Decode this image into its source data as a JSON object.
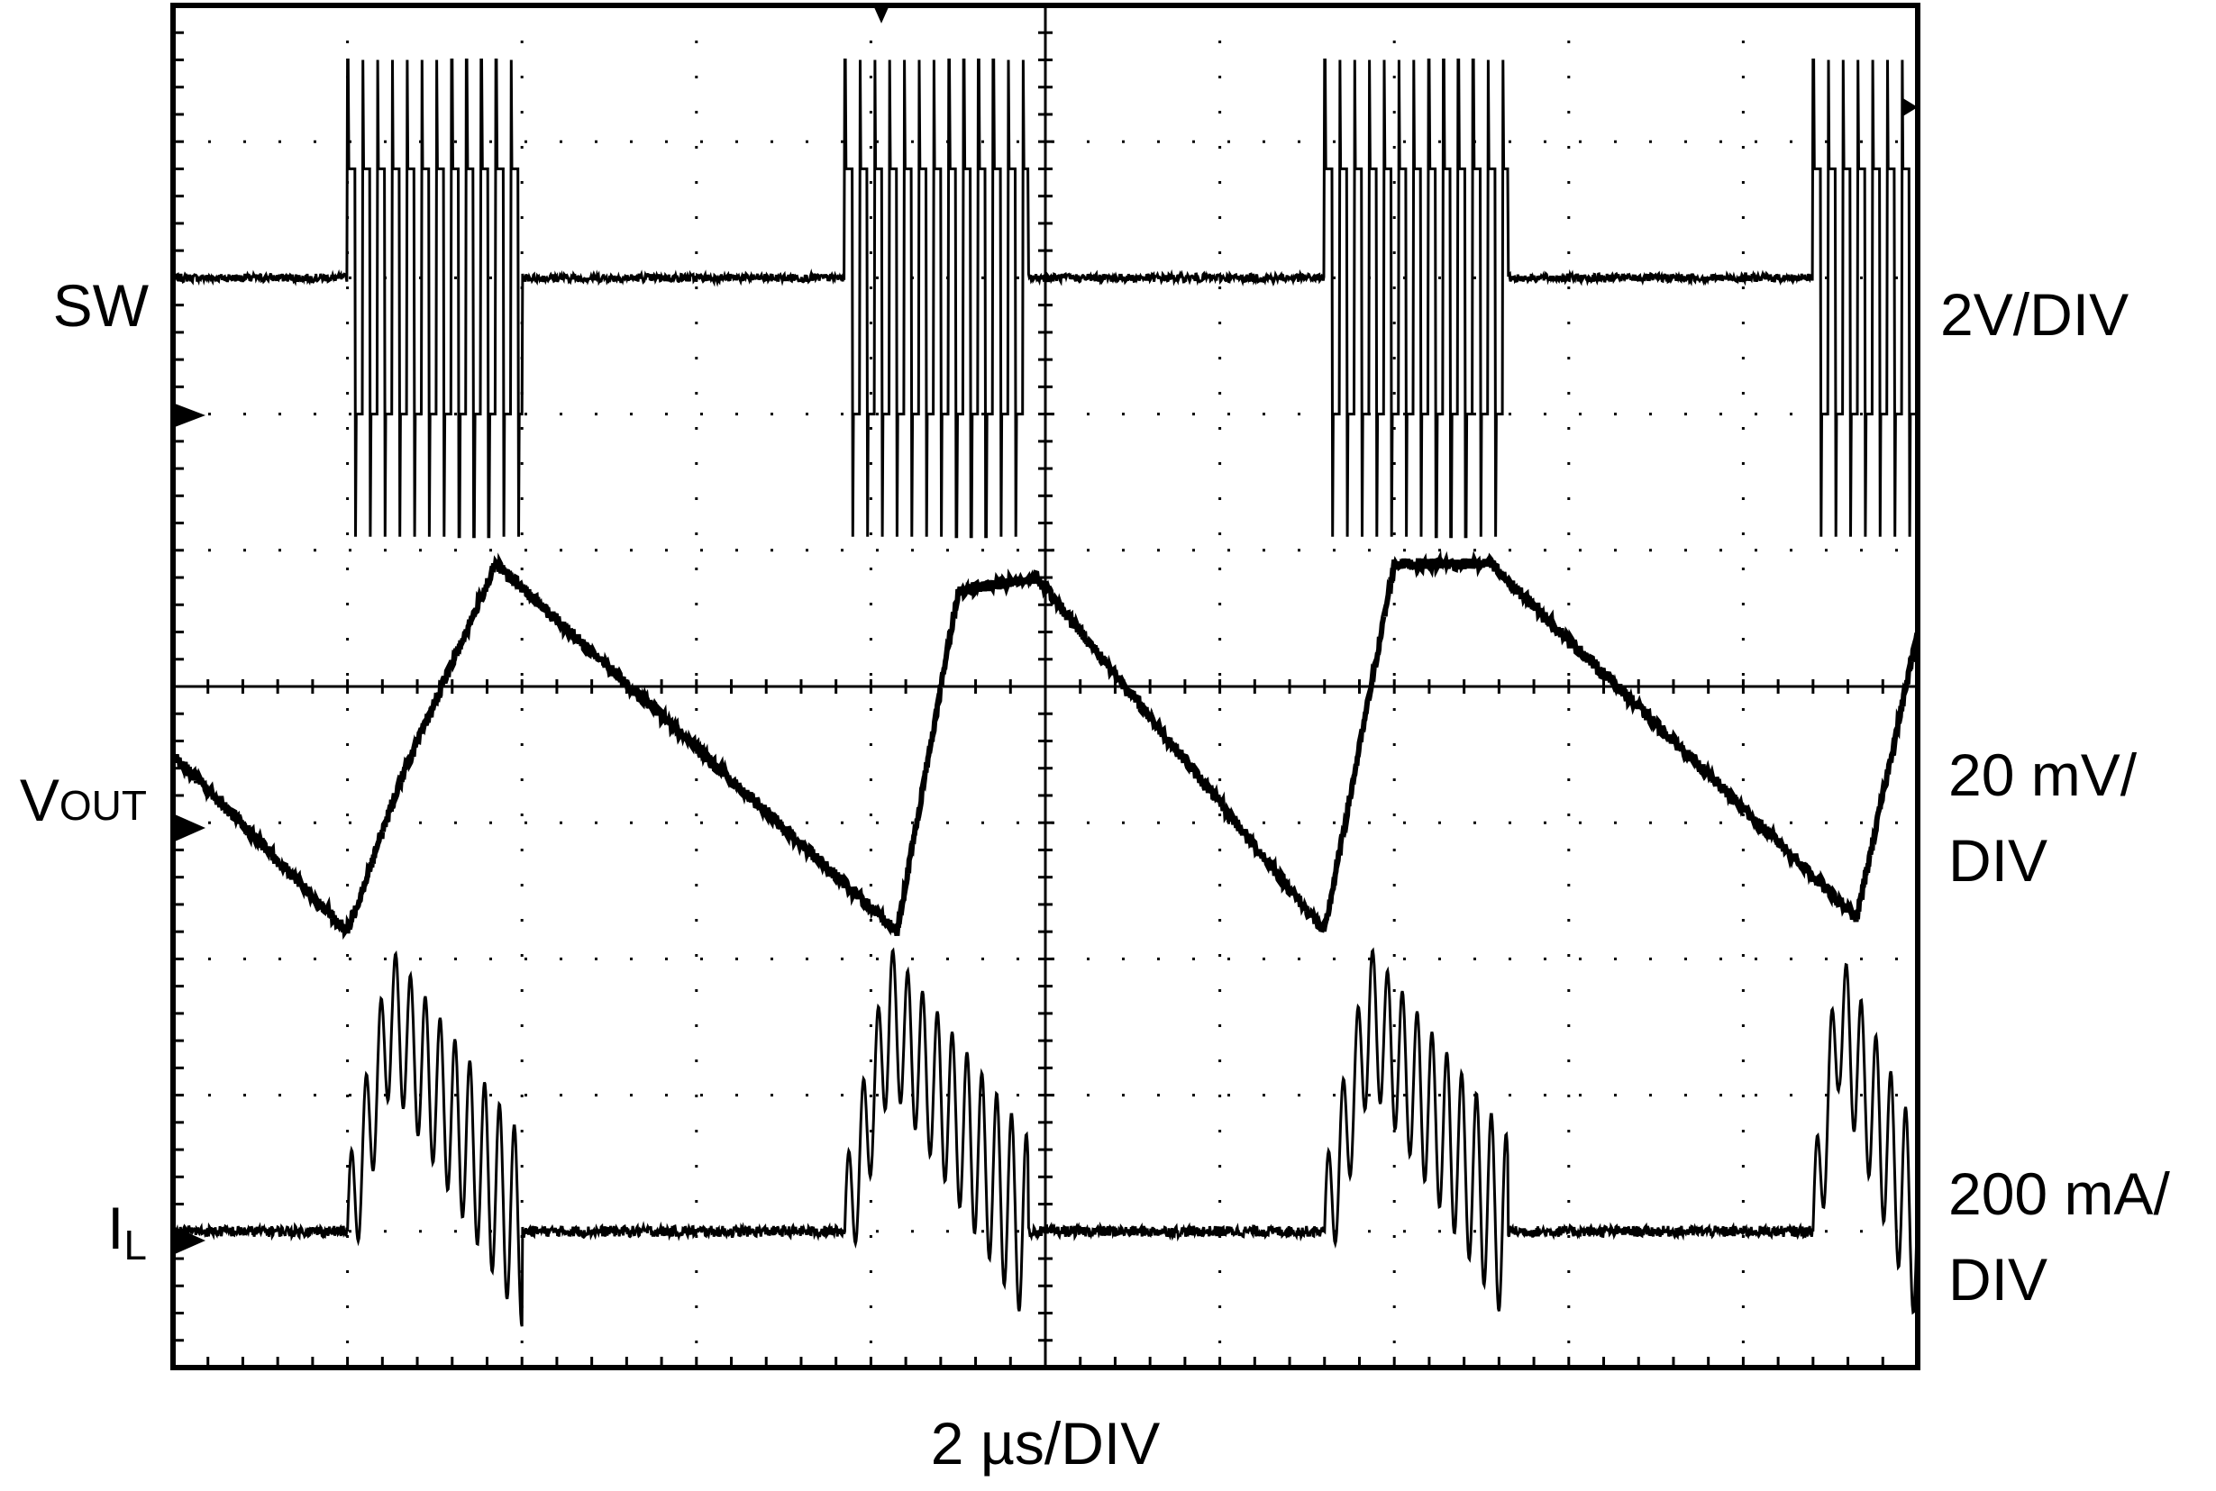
{
  "chart_data": {
    "type": "line",
    "title": "",
    "time_scale": "2 µs/DIV",
    "grid": "dotted, 10 x 10 divisions",
    "x": {
      "unit": "µs",
      "range": [
        0,
        20
      ],
      "divisions": 10,
      "per_div": 2
    },
    "y": {
      "unit": "div",
      "range": [
        -5,
        5
      ],
      "divisions": 10
    },
    "channels": [
      {
        "name": "SW",
        "label": "SW",
        "scale": "2V/DIV",
        "baseline_div": 3.0,
        "burst_high_div": 3.8,
        "burst_low_div": 2.0,
        "bursts_us": [
          [
            2.0,
            4.0
          ],
          [
            7.7,
            9.8
          ],
          [
            13.2,
            15.3
          ],
          [
            18.8,
            20.0
          ]
        ]
      },
      {
        "name": "VOUT",
        "label_main": "V",
        "label_sub": "OUT",
        "scale_line1": "20 mV/",
        "scale_line2": "DIV",
        "ac_coupled": true,
        "x": [
          0.0,
          2.0,
          2.6,
          3.7,
          8.3,
          9.0,
          9.9,
          13.2,
          14.0,
          15.1,
          19.3,
          20.0
        ],
        "y": [
          -0.5,
          -1.8,
          -0.7,
          0.9,
          -1.8,
          0.7,
          0.8,
          -1.8,
          0.9,
          0.9,
          -1.7,
          0.4
        ]
      },
      {
        "name": "IL",
        "label_main": "I",
        "label_sub": "L",
        "scale_line1": "200 mA/",
        "scale_line2": "DIV",
        "baseline_div": -4.0,
        "peak_div": -1.9,
        "pulses_us": [
          [
            2.0,
            4.0
          ],
          [
            7.7,
            9.8
          ],
          [
            13.2,
            15.3
          ],
          [
            18.8,
            20.0
          ]
        ]
      }
    ]
  }
}
